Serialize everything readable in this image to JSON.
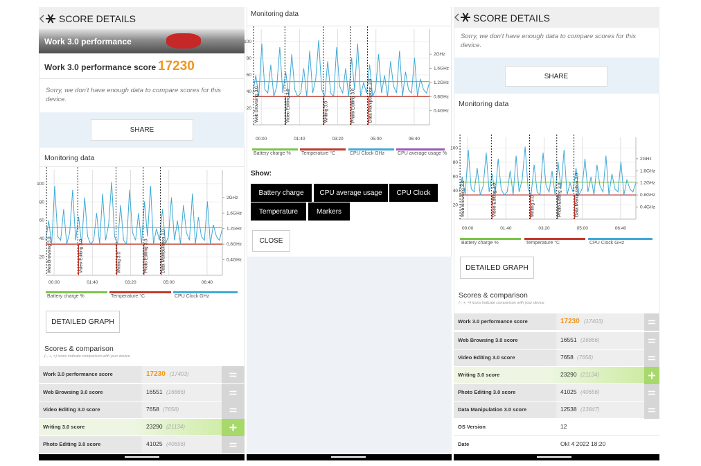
{
  "left": {
    "header": "SCORE DETAILS",
    "banner": "Work 3.0 performance",
    "score_label": "Work 3.0 performance score",
    "score": "17230",
    "sorry": "Sorry, we don't have enough data to compare scores for this device.",
    "share": "SHARE",
    "monitoring_title": "Monitoring data",
    "detailed": "DETAILED GRAPH",
    "scores_title": "Scores & comparison",
    "scores_note": "(-, +, =) icons indicate comparison with your device"
  },
  "middle": {
    "monitoring_title": "Monitoring data",
    "show": "Show:",
    "toggles": [
      "Battery charge",
      "CPU average usage",
      "CPU Clock",
      "Temperature",
      "Markers"
    ],
    "close": "CLOSE"
  },
  "right": {
    "header": "SCORE DETAILS",
    "sorry": "Sorry, we don't have enough data to compare scores for this device.",
    "share": "SHARE",
    "monitoring_title": "Monitoring data",
    "detailed": "DETAILED GRAPH",
    "scores_title": "Scores & comparison",
    "scores_note": "(-, +, =) icons indicate comparison with your device"
  },
  "scores": [
    {
      "label": "Work 3.0 performance score",
      "value": "17230",
      "compare": "(17403)",
      "comparison": "equal"
    },
    {
      "label": "Web Browsing 3.0 score",
      "value": "16551",
      "compare": "(16866)",
      "comparison": "equal"
    },
    {
      "label": "Video Editing 3.0 score",
      "value": "7658",
      "compare": "(7658)",
      "comparison": "equal"
    },
    {
      "label": "Writing 3.0 score",
      "value": "23290",
      "compare": "(21134)",
      "comparison": "better"
    },
    {
      "label": "Photo Editing 3.0 score",
      "value": "41025",
      "compare": "(40656)",
      "comparison": "equal"
    },
    {
      "label": "Data Manipulation 3.0 score",
      "value": "12538",
      "compare": "(13847)",
      "comparison": "equal"
    },
    {
      "label": "OS Version",
      "value": "12"
    },
    {
      "label": "Date",
      "value": "Okt 4 2022 18:20"
    }
  ],
  "graph": {
    "ylim": [
      0,
      115
    ],
    "yticks": [
      20,
      40,
      60,
      80,
      100
    ],
    "y2lim": [
      0,
      2.71
    ],
    "y2ticks": [
      {
        "value": 0.4,
        "label": "0.4GHz"
      },
      {
        "value": 0.8,
        "label": "0.8GHz"
      },
      {
        "value": 1.2,
        "label": "1.2GHz"
      },
      {
        "value": 1.6,
        "label": "1.6GHz"
      },
      {
        "value": 2,
        "label": "2GHz"
      }
    ],
    "xlim": [
      -22,
      440
    ],
    "xticks": [
      {
        "value": 0,
        "label": "00:00"
      },
      {
        "value": 100,
        "label": "01:40"
      },
      {
        "value": 200,
        "label": "03:20"
      },
      {
        "value": 300,
        "label": "05:00"
      },
      {
        "value": 400,
        "label": "06:40"
      }
    ],
    "markers": [
      {
        "label": "Web Browsing 3.0",
        "x": -20
      },
      {
        "label": "Video Editing 3.0",
        "x": 62
      },
      {
        "label": "Writing 3.0",
        "x": 162
      },
      {
        "label": "Photo Editing 3.0",
        "x": 233
      },
      {
        "label": "Data Manipulation 3.0",
        "x": 278
      }
    ],
    "legend": [
      {
        "name": "Battery charge %",
        "color": "#7dc24b"
      },
      {
        "name": "Temperature °C",
        "color": "#c0392b"
      },
      {
        "name": "CPU Clock GHz",
        "color": "#3fa9d6"
      },
      {
        "name": "CPU average usage %",
        "color": "#9b59b6"
      }
    ],
    "battery": {
      "values": [
        52,
        52
      ]
    },
    "temperature": {
      "values": [
        34,
        34
      ]
    },
    "cpu": {
      "axis": "y2",
      "values": [
        0.9,
        1.4,
        0.8,
        2.3,
        1.0,
        0.9,
        1.7,
        0.8,
        1.1,
        2.2,
        0.9,
        1.5,
        0.8,
        2.0,
        1.0,
        0.8,
        0.9,
        1.6,
        0.8,
        2.1,
        0.9,
        1.3,
        2.4,
        1.0,
        0.8,
        1.8,
        0.9,
        0.8,
        2.2,
        1.1,
        0.9,
        1.6,
        0.8,
        1.9,
        1.0,
        2.3,
        0.8,
        1.2,
        0.9,
        1.7,
        0.8,
        1.0,
        2.0,
        0.9,
        1.4,
        0.8,
        1.8,
        1.1,
        0.9,
        2.1,
        0.8,
        1.5,
        1.0,
        0.9,
        1.9,
        0.8,
        1.3,
        1.0,
        0.9,
        1.2
      ]
    }
  }
}
